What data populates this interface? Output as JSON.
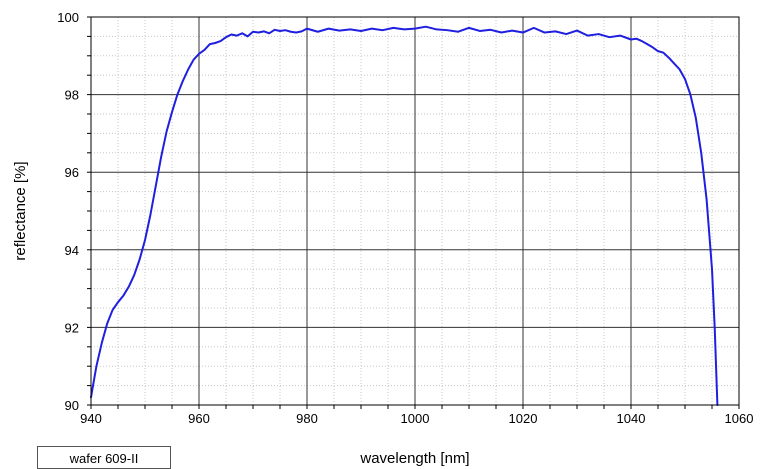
{
  "legend": {
    "label": "wafer 609-II"
  },
  "chart_data": {
    "type": "line",
    "xlabel": "wavelength [nm]",
    "ylabel": "reflectance [%]",
    "xlim": [
      940,
      1060
    ],
    "ylim": [
      90,
      100
    ],
    "x_ticks": [
      940,
      960,
      980,
      1000,
      1020,
      1040,
      1060
    ],
    "y_ticks": [
      90,
      92,
      94,
      96,
      98,
      100
    ],
    "grid": true,
    "minor_grid": true,
    "series": [
      {
        "name": "wafer 609-II",
        "color": "#1f1fe0",
        "x": [
          940,
          941,
          942,
          943,
          944,
          945,
          946,
          947,
          948,
          949,
          950,
          951,
          952,
          953,
          954,
          955,
          956,
          957,
          958,
          959,
          960,
          961,
          962,
          963,
          964,
          965,
          966,
          967,
          968,
          969,
          970,
          971,
          972,
          973,
          974,
          975,
          976,
          977,
          978,
          979,
          980,
          982,
          984,
          986,
          988,
          990,
          992,
          994,
          996,
          998,
          1000,
          1002,
          1004,
          1006,
          1008,
          1010,
          1012,
          1014,
          1016,
          1018,
          1020,
          1022,
          1024,
          1026,
          1028,
          1030,
          1032,
          1034,
          1036,
          1038,
          1040,
          1041,
          1042,
          1043,
          1044,
          1045,
          1046,
          1047,
          1048,
          1049,
          1050,
          1051,
          1052,
          1053,
          1054,
          1055,
          1055.5,
          1056
        ],
        "values": [
          90.2,
          91.0,
          91.6,
          92.1,
          92.45,
          92.65,
          92.82,
          93.05,
          93.35,
          93.75,
          94.25,
          94.9,
          95.65,
          96.4,
          97.05,
          97.55,
          98.0,
          98.35,
          98.65,
          98.9,
          99.05,
          99.15,
          99.3,
          99.33,
          99.38,
          99.48,
          99.55,
          99.52,
          99.58,
          99.5,
          99.62,
          99.6,
          99.63,
          99.58,
          99.67,
          99.64,
          99.66,
          99.62,
          99.6,
          99.63,
          99.7,
          99.62,
          99.7,
          99.65,
          99.68,
          99.64,
          99.7,
          99.66,
          99.72,
          99.68,
          99.7,
          99.75,
          99.68,
          99.66,
          99.62,
          99.72,
          99.64,
          99.67,
          99.6,
          99.65,
          99.6,
          99.72,
          99.6,
          99.63,
          99.56,
          99.65,
          99.52,
          99.56,
          99.48,
          99.52,
          99.42,
          99.44,
          99.38,
          99.3,
          99.22,
          99.12,
          99.08,
          98.95,
          98.8,
          98.65,
          98.4,
          98.0,
          97.4,
          96.5,
          95.3,
          93.5,
          92.0,
          90.0
        ]
      }
    ]
  }
}
